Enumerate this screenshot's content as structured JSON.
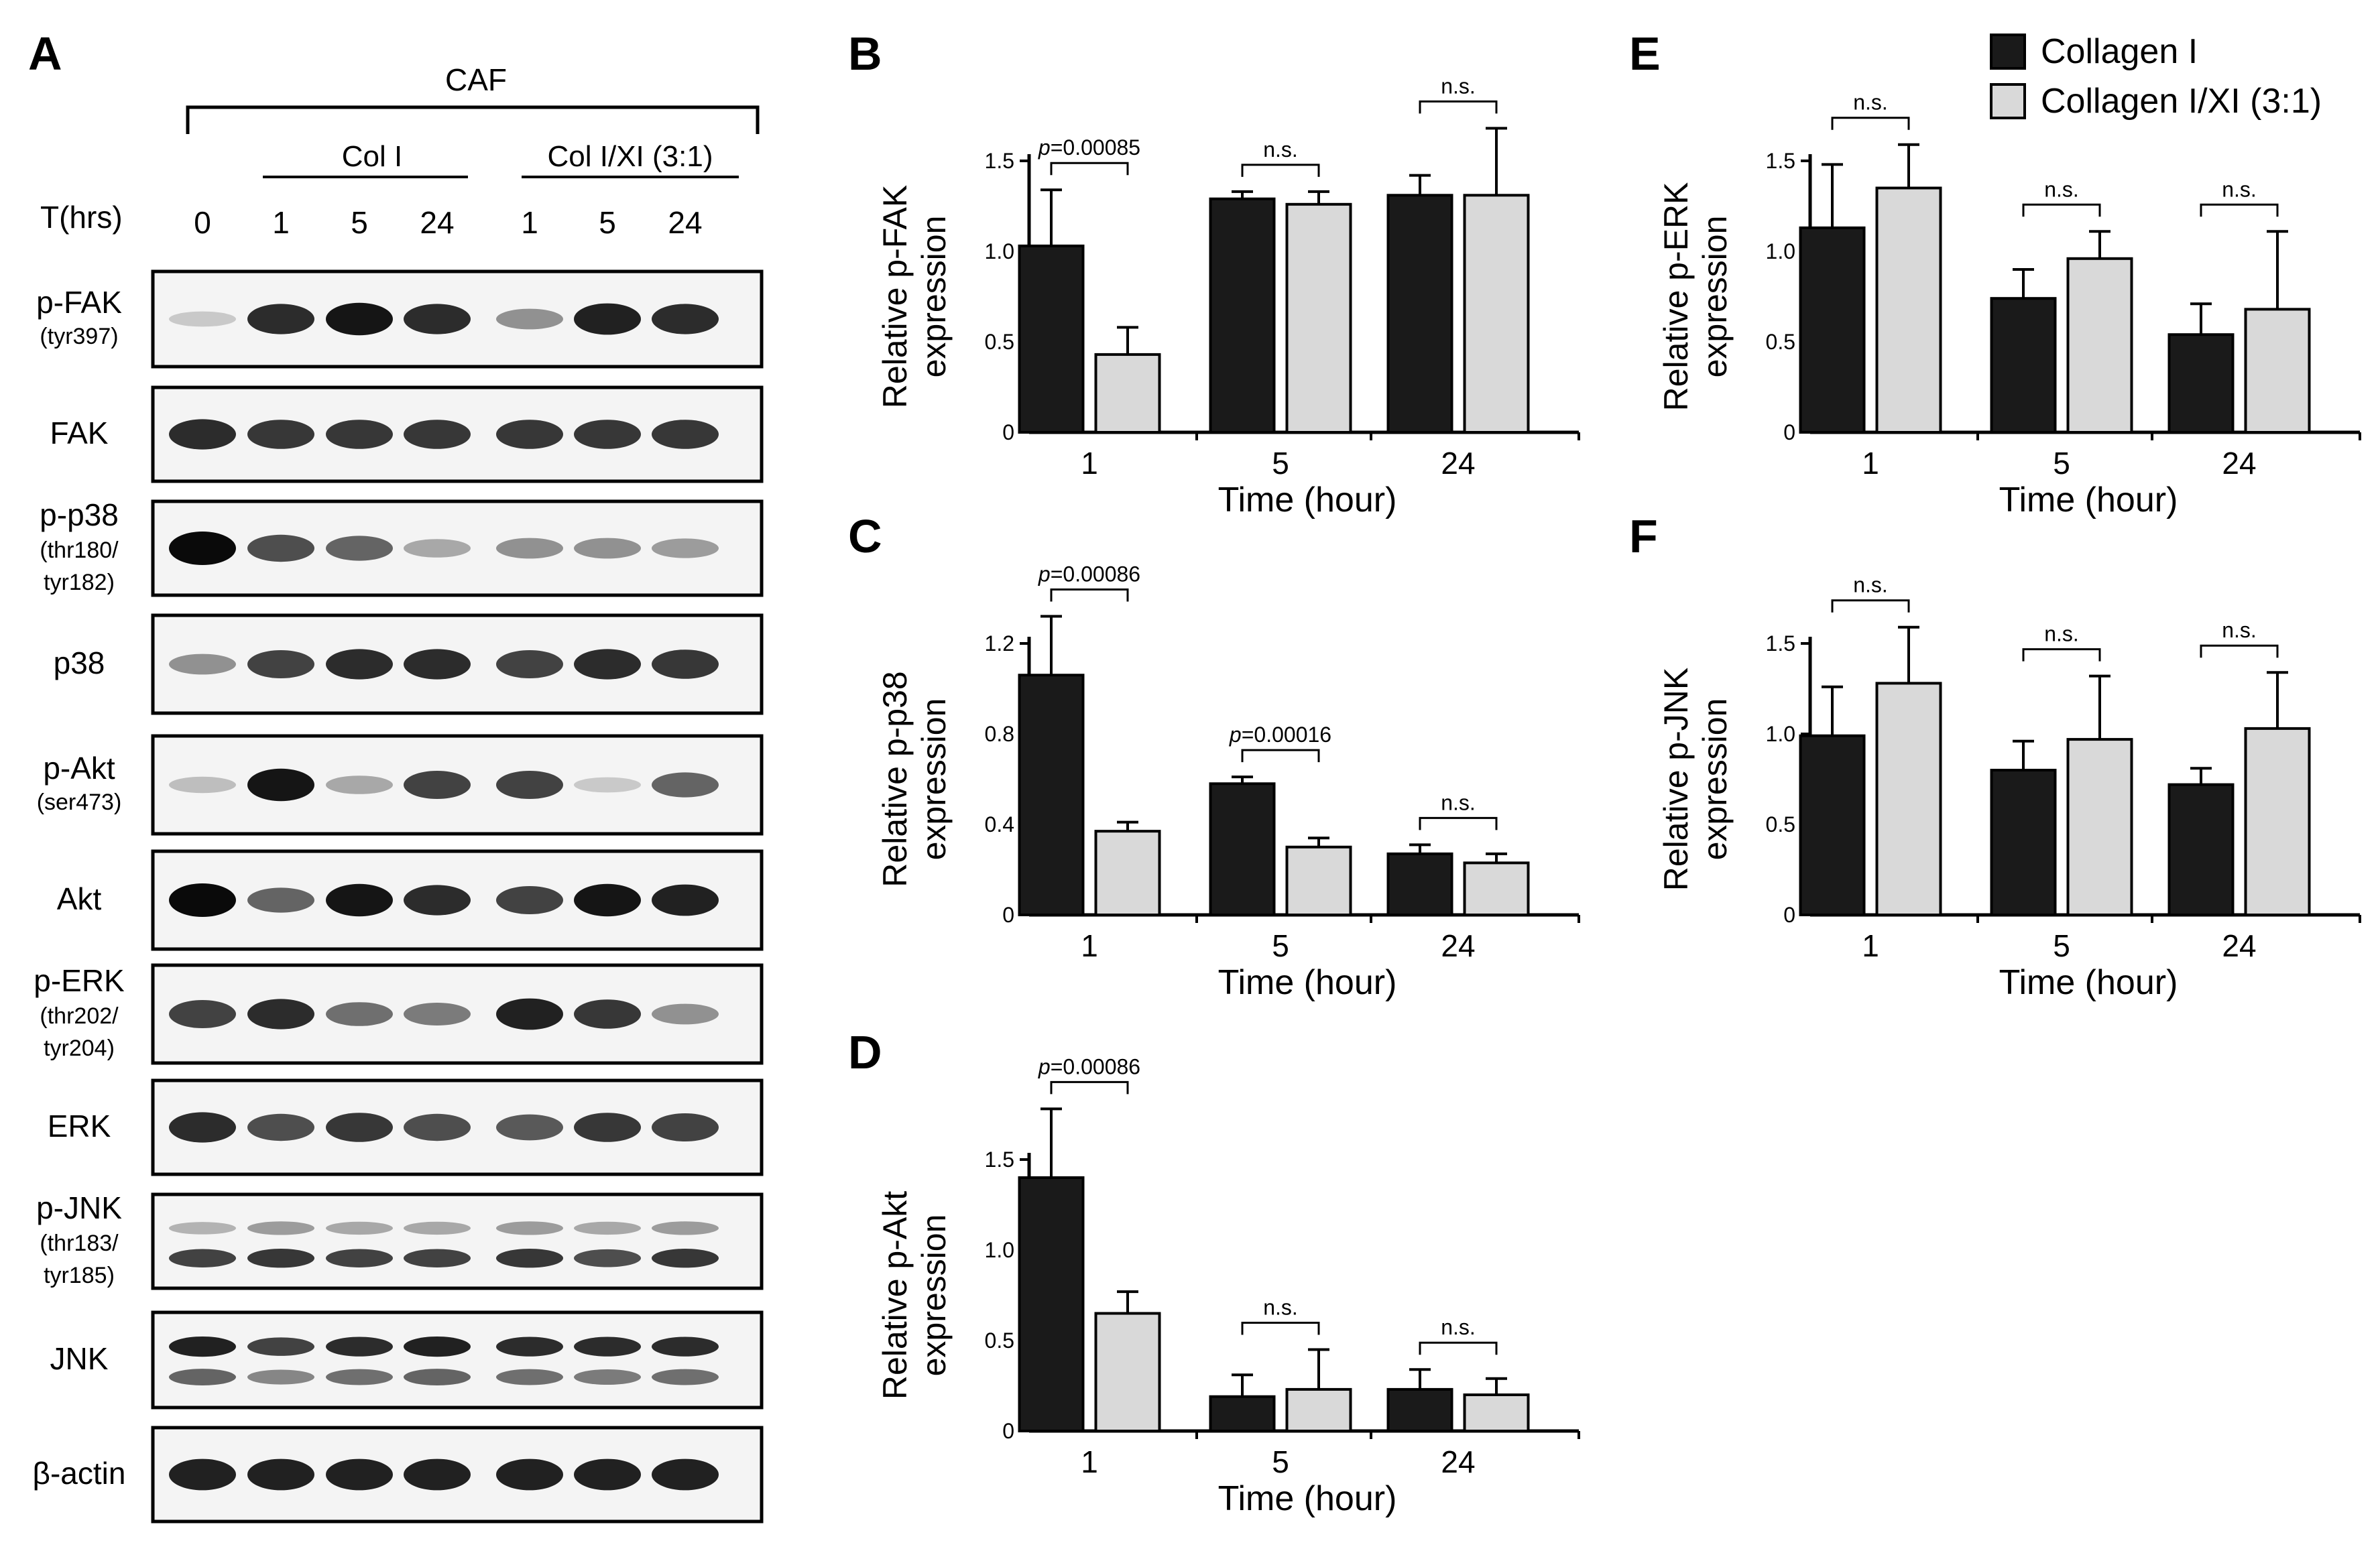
{
  "figure": {
    "panel_letters": [
      "A",
      "B",
      "C",
      "D",
      "E",
      "F"
    ]
  },
  "legend": {
    "items": [
      {
        "label": "Collagen I",
        "color": "#1a1a1a"
      },
      {
        "label": "Collagen I/XI (3:1)",
        "color": "#d9d9d9"
      }
    ]
  },
  "blot": {
    "cell_group_label": "CAF",
    "condition_labels": [
      "Col I",
      "Col I/XI (3:1)"
    ],
    "time_header": "T(hrs)",
    "lane_labels": [
      "0",
      "1",
      "5",
      "24",
      "1",
      "5",
      "24"
    ],
    "rows": [
      {
        "label": [
          "p-FAK",
          "(tyr397)"
        ],
        "bands": [
          [
            0.15,
            0.85,
            0.95,
            0.85,
            0.4,
            0.9,
            0.85
          ]
        ]
      },
      {
        "label": [
          "FAK"
        ],
        "bands": [
          [
            0.85,
            0.8,
            0.8,
            0.8,
            0.8,
            0.8,
            0.8
          ]
        ]
      },
      {
        "label": [
          "p-p38",
          "(thr180/",
          "tyr182)"
        ],
        "bands": [
          [
            1.0,
            0.7,
            0.6,
            0.3,
            0.4,
            0.4,
            0.35
          ]
        ]
      },
      {
        "label": [
          "p38"
        ],
        "bands": [
          [
            0.4,
            0.75,
            0.85,
            0.85,
            0.75,
            0.85,
            0.8
          ]
        ]
      },
      {
        "label": [
          "p-Akt",
          "(ser473)"
        ],
        "bands": [
          [
            0.2,
            0.95,
            0.3,
            0.75,
            0.75,
            0.15,
            0.6
          ]
        ]
      },
      {
        "label": [
          "Akt"
        ],
        "bands": [
          [
            1.0,
            0.6,
            0.95,
            0.85,
            0.75,
            0.95,
            0.9
          ]
        ]
      },
      {
        "label": [
          "p-ERK",
          "(thr202/",
          "tyr204)"
        ],
        "bands": [
          [
            0.75,
            0.85,
            0.55,
            0.5,
            0.9,
            0.8,
            0.4
          ]
        ]
      },
      {
        "label": [
          "ERK"
        ],
        "bands": [
          [
            0.85,
            0.7,
            0.8,
            0.7,
            0.65,
            0.8,
            0.75
          ]
        ]
      },
      {
        "label": [
          "p-JNK",
          "(thr183/",
          "tyr185)"
        ],
        "bands": [
          [
            0.25,
            0.35,
            0.3,
            0.3,
            0.35,
            0.3,
            0.35
          ],
          [
            0.75,
            0.8,
            0.75,
            0.75,
            0.8,
            0.7,
            0.8
          ]
        ]
      },
      {
        "label": [
          "JNK"
        ],
        "bands": [
          [
            0.9,
            0.75,
            0.85,
            0.9,
            0.85,
            0.85,
            0.85
          ],
          [
            0.6,
            0.45,
            0.55,
            0.6,
            0.55,
            0.5,
            0.55
          ]
        ]
      },
      {
        "label": [
          "β-actin"
        ],
        "bands": [
          [
            0.9,
            0.9,
            0.9,
            0.9,
            0.9,
            0.9,
            0.9
          ]
        ]
      }
    ]
  },
  "chart_data": [
    {
      "panel": "B",
      "type": "bar",
      "ylabel": [
        "Relative p-FAK",
        "expression"
      ],
      "xlabel": "Time (hour)",
      "categories": [
        "1",
        "5",
        "24"
      ],
      "ylim": [
        0,
        1.5
      ],
      "yticks": [
        0,
        0.5,
        1.0,
        1.5
      ],
      "ytick_labels": [
        "0",
        "0.5",
        "1.0",
        "1.5"
      ],
      "series": [
        {
          "values": [
            1.03,
            1.29,
            1.31
          ],
          "errors": [
            0.31,
            0.04,
            0.11
          ]
        },
        {
          "values": [
            0.43,
            1.26,
            1.31
          ],
          "errors": [
            0.15,
            0.07,
            0.37
          ]
        }
      ],
      "annotations": [
        {
          "category": 0,
          "text": "p=0.00085",
          "italic_p": true
        },
        {
          "category": 1,
          "text": "n.s."
        },
        {
          "category": 2,
          "text": "n.s."
        }
      ]
    },
    {
      "panel": "C",
      "type": "bar",
      "ylabel": [
        "Relative p-p38",
        "expression"
      ],
      "xlabel": "Time (hour)",
      "categories": [
        "1",
        "5",
        "24"
      ],
      "ylim": [
        0,
        1.2
      ],
      "yticks": [
        0,
        0.4,
        0.8,
        1.2
      ],
      "ytick_labels": [
        "0",
        "0.4",
        "0.8",
        "1.2"
      ],
      "series": [
        {
          "values": [
            1.06,
            0.58,
            0.27
          ],
          "errors": [
            0.26,
            0.03,
            0.04
          ]
        },
        {
          "values": [
            0.37,
            0.3,
            0.23
          ],
          "errors": [
            0.04,
            0.04,
            0.04
          ]
        }
      ],
      "annotations": [
        {
          "category": 0,
          "text": "p=0.00086",
          "italic_p": true
        },
        {
          "category": 1,
          "text": "p=0.00016",
          "italic_p": true
        },
        {
          "category": 2,
          "text": "n.s."
        }
      ]
    },
    {
      "panel": "D",
      "type": "bar",
      "ylabel": [
        "Relative p-Akt",
        "expression"
      ],
      "xlabel": "Time (hour)",
      "categories": [
        "1",
        "5",
        "24"
      ],
      "ylim": [
        0,
        1.5
      ],
      "yticks": [
        0,
        0.5,
        1.0,
        1.5
      ],
      "ytick_labels": [
        "0",
        "0.5",
        "1.0",
        "1.5"
      ],
      "series": [
        {
          "values": [
            1.4,
            0.19,
            0.23
          ],
          "errors": [
            0.38,
            0.12,
            0.11
          ]
        },
        {
          "values": [
            0.65,
            0.23,
            0.2
          ],
          "errors": [
            0.12,
            0.22,
            0.09
          ]
        }
      ],
      "annotations": [
        {
          "category": 0,
          "text": "p=0.00086",
          "italic_p": true
        },
        {
          "category": 1,
          "text": "n.s."
        },
        {
          "category": 2,
          "text": "n.s."
        }
      ]
    },
    {
      "panel": "E",
      "type": "bar",
      "ylabel": [
        "Relative p-ERK",
        "expression"
      ],
      "xlabel": "Time (hour)",
      "categories": [
        "1",
        "5",
        "24"
      ],
      "ylim": [
        0,
        1.5
      ],
      "yticks": [
        0,
        0.5,
        1.0,
        1.5
      ],
      "ytick_labels": [
        "0",
        "0.5",
        "1.0",
        "1.5"
      ],
      "series": [
        {
          "values": [
            1.13,
            0.74,
            0.54
          ],
          "errors": [
            0.35,
            0.16,
            0.17
          ]
        },
        {
          "values": [
            1.35,
            0.96,
            0.68
          ],
          "errors": [
            0.24,
            0.15,
            0.43
          ]
        }
      ],
      "annotations": [
        {
          "category": 0,
          "text": "n.s."
        },
        {
          "category": 1,
          "text": "n.s."
        },
        {
          "category": 2,
          "text": "n.s."
        }
      ]
    },
    {
      "panel": "F",
      "type": "bar",
      "ylabel": [
        "Relative p-JNK",
        "expression"
      ],
      "xlabel": "Time (hour)",
      "categories": [
        "1",
        "5",
        "24"
      ],
      "ylim": [
        0,
        1.5
      ],
      "yticks": [
        0,
        0.5,
        1.0,
        1.5
      ],
      "ytick_labels": [
        "0",
        "0.5",
        "1.0",
        "1.5"
      ],
      "series": [
        {
          "values": [
            0.99,
            0.8,
            0.72
          ],
          "errors": [
            0.27,
            0.16,
            0.09
          ]
        },
        {
          "values": [
            1.28,
            0.97,
            1.03
          ],
          "errors": [
            0.31,
            0.35,
            0.31
          ]
        }
      ],
      "annotations": [
        {
          "category": 0,
          "text": "n.s."
        },
        {
          "category": 1,
          "text": "n.s."
        },
        {
          "category": 2,
          "text": "n.s."
        }
      ]
    }
  ]
}
